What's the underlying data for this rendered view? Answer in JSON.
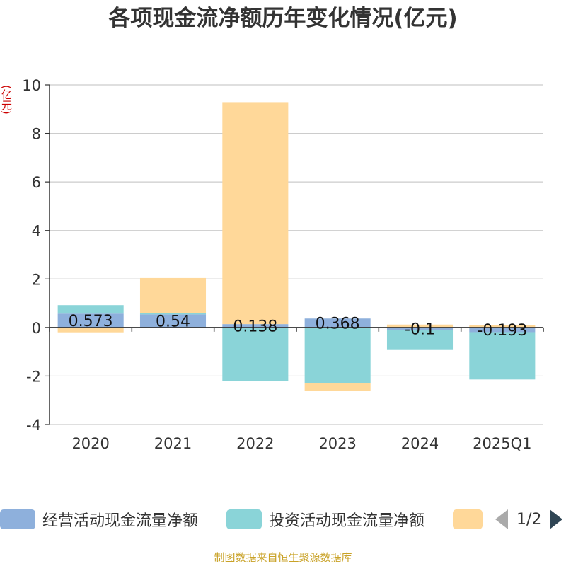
{
  "chart_data": {
    "type": "bar",
    "stacked": true,
    "title": "各项现金流净额历年变化情况(亿元)",
    "y_unit": "(亿元)",
    "categories": [
      "2020",
      "2021",
      "2022",
      "2023",
      "2024",
      "2025Q1"
    ],
    "ylim": [
      -4,
      10
    ],
    "yticks": [
      -4,
      -2,
      0,
      2,
      4,
      6,
      8,
      10
    ],
    "grid": true,
    "series": [
      {
        "name": "经营活动现金流量净额",
        "color": "#8eb0dc",
        "values": [
          0.573,
          0.54,
          0.138,
          0.368,
          -0.1,
          -0.193
        ],
        "labels": [
          "0.573",
          "0.54",
          "0.138",
          "0.368",
          "-0.1",
          "-0.193"
        ]
      },
      {
        "name": "投资活动现金流量净额",
        "color": "#8ad4d8",
        "values": [
          0.35,
          0.05,
          -2.2,
          -2.3,
          -0.8,
          -1.95
        ]
      },
      {
        "name": "",
        "color": "#ffd899",
        "values": [
          -0.2,
          1.45,
          9.15,
          -0.3,
          0.12,
          0.1
        ]
      }
    ],
    "legend": {
      "placement": "bottom",
      "page_text": "1/2"
    }
  },
  "source_note": "制图数据来自恒生聚源数据库"
}
